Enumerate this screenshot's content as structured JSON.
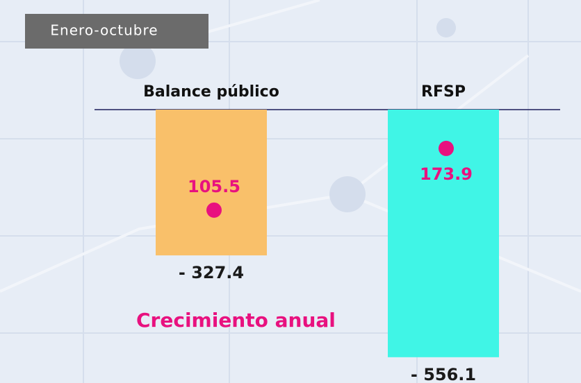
{
  "chart_data": {
    "type": "bar",
    "subtitle": "Enero-octubre",
    "categories": [
      "Balance público",
      "RFSP"
    ],
    "series": [
      {
        "values": [
          -327.4,
          -556.1
        ],
        "value_labels": [
          "- 327.4",
          "- 556.1"
        ],
        "colors": [
          "#f9c06a",
          "#40f5e6"
        ]
      },
      {
        "name": "Crecimiento anual",
        "color": "#e8117f",
        "axis": "y2",
        "values": [
          105.5,
          173.9
        ]
      }
    ],
    "ylim": [
      -600,
      0
    ],
    "y2lim": [
      0,
      200
    ]
  }
}
